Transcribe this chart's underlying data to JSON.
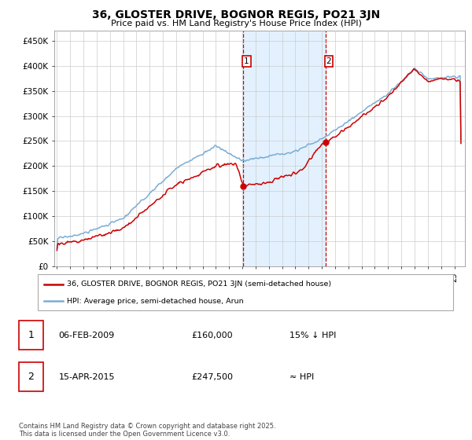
{
  "title": "36, GLOSTER DRIVE, BOGNOR REGIS, PO21 3JN",
  "subtitle": "Price paid vs. HM Land Registry's House Price Index (HPI)",
  "ylabel_ticks": [
    "£0",
    "£50K",
    "£100K",
    "£150K",
    "£200K",
    "£250K",
    "£300K",
    "£350K",
    "£400K",
    "£450K"
  ],
  "ytick_values": [
    0,
    50000,
    100000,
    150000,
    200000,
    250000,
    300000,
    350000,
    400000,
    450000
  ],
  "ylim": [
    0,
    470000
  ],
  "xlim_start": 1994.8,
  "xlim_end": 2025.8,
  "hpi_color": "#7aadd4",
  "price_color": "#cc0000",
  "shaded_color": "#ddeeff",
  "shaded_region": [
    2009.08,
    2015.28
  ],
  "marker1_x": 2009.08,
  "marker1_y": 160000,
  "marker2_x": 2015.28,
  "marker2_y": 247500,
  "legend_label1": "36, GLOSTER DRIVE, BOGNOR REGIS, PO21 3JN (semi-detached house)",
  "legend_label2": "HPI: Average price, semi-detached house, Arun",
  "table_row1": [
    "1",
    "06-FEB-2009",
    "£160,000",
    "15% ↓ HPI"
  ],
  "table_row2": [
    "2",
    "15-APR-2015",
    "£247,500",
    "≈ HPI"
  ],
  "footnote": "Contains HM Land Registry data © Crown copyright and database right 2025.\nThis data is licensed under the Open Government Licence v3.0.",
  "background_color": "#ffffff",
  "grid_color": "#cccccc"
}
